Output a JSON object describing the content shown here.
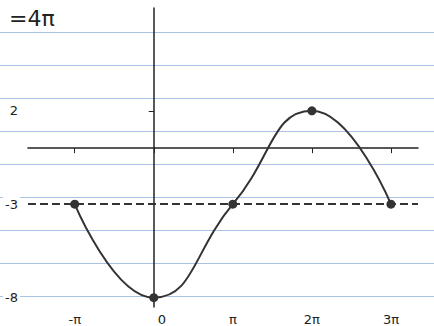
{
  "chart_data": {
    "type": "line",
    "title": "=4π",
    "x": [
      -3.1416,
      0,
      3.1416,
      6.2832,
      9.4248
    ],
    "values": [
      -3,
      -8,
      -3,
      2,
      -3
    ],
    "color": "#333333",
    "marker": "circle",
    "line_style": "solid",
    "xlim": [
      -5,
      10.5
    ],
    "xticks": [
      {
        "value": -3.1416,
        "label": "-π"
      },
      0,
      {
        "value": 3.1416,
        "label": "π"
      },
      {
        "value": 6.2832,
        "label": "2π"
      },
      {
        "value": 9.4248,
        "label": "3π"
      }
    ],
    "ylim": [
      -8.5,
      7.5
    ],
    "yticks": [
      2,
      -3,
      -8
    ],
    "reference_lines": [
      {
        "y": -3,
        "line_style": "dashed"
      }
    ],
    "grid": false
  }
}
